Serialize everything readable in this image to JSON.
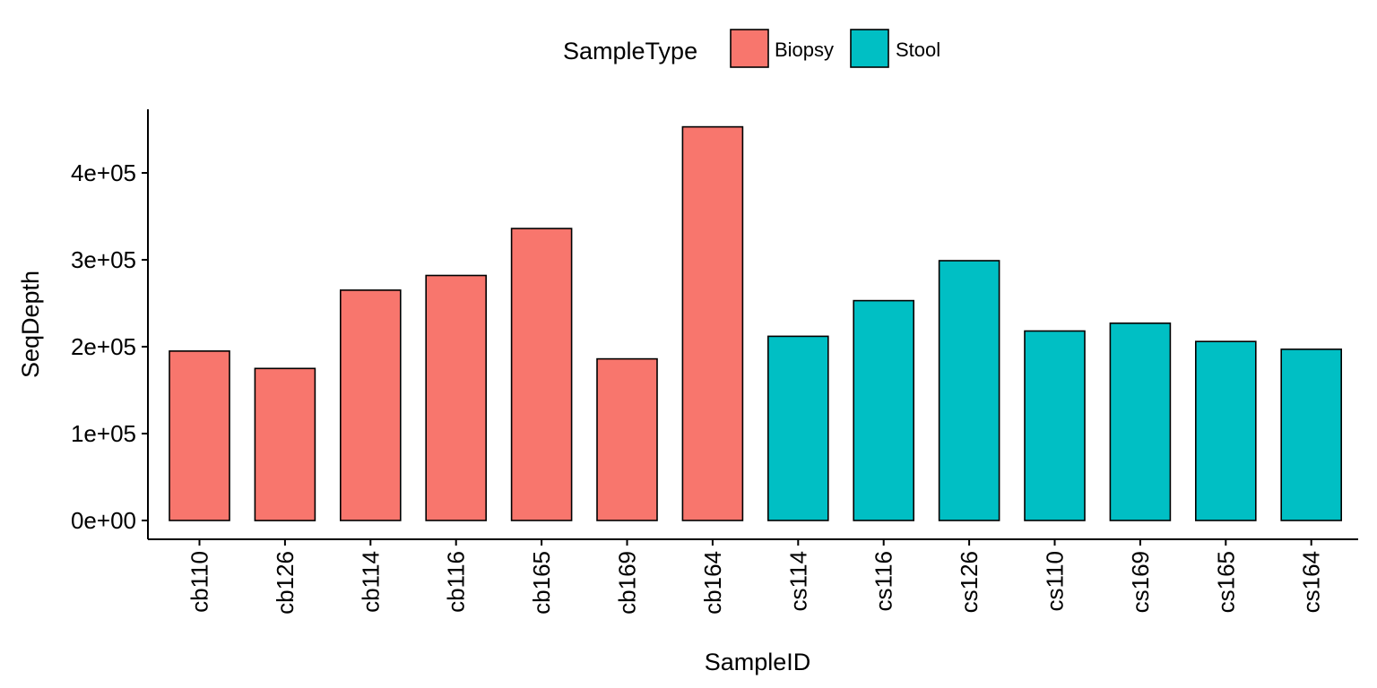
{
  "chart_data": {
    "type": "bar",
    "xlabel": "SampleID",
    "ylabel": "SeqDepth",
    "ylim": [
      -23000,
      480000
    ],
    "y_ticks": [
      0,
      100000,
      200000,
      300000,
      400000
    ],
    "y_tick_labels": [
      "0e+00",
      "1e+05",
      "2e+05",
      "3e+05",
      "4e+05"
    ],
    "grid": false,
    "legend": {
      "title": "SampleType",
      "position": "top",
      "entries": [
        {
          "label": "Biopsy",
          "color": "#F8766D"
        },
        {
          "label": "Stool",
          "color": "#00BFC4"
        }
      ]
    },
    "categories": [
      "cb110",
      "cb126",
      "cb114",
      "cb116",
      "cb165",
      "cb169",
      "cb164",
      "cs114",
      "cs116",
      "cs126",
      "cs110",
      "cs169",
      "cs165",
      "cs164"
    ],
    "values": [
      195000,
      175000,
      265000,
      282000,
      336000,
      186000,
      453000,
      212000,
      253000,
      299000,
      218000,
      227000,
      206000,
      197000
    ],
    "groups": [
      "Biopsy",
      "Biopsy",
      "Biopsy",
      "Biopsy",
      "Biopsy",
      "Biopsy",
      "Biopsy",
      "Stool",
      "Stool",
      "Stool",
      "Stool",
      "Stool",
      "Stool",
      "Stool"
    ]
  }
}
